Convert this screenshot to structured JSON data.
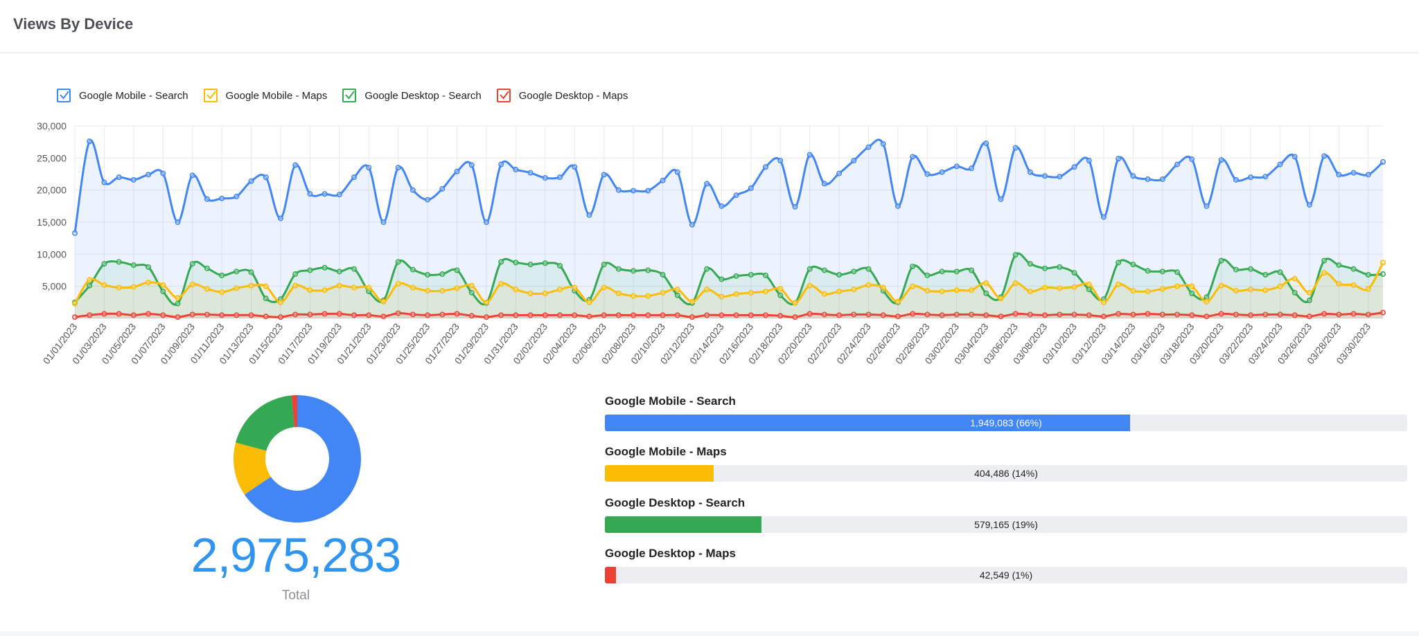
{
  "title": "Views By Device",
  "colors": {
    "mobile_search": "#4285f4",
    "mobile_maps": "#fbbc05",
    "desktop_search": "#34a853",
    "desktop_maps": "#ea4335"
  },
  "legend": [
    {
      "label": "Google Mobile - Search",
      "color": "#4285f4",
      "checked": true,
      "icon": "checkbox-checked-icon"
    },
    {
      "label": "Google Mobile - Maps",
      "color": "#fbbc05",
      "checked": true,
      "icon": "checkbox-checked-icon"
    },
    {
      "label": "Google Desktop - Search",
      "color": "#34a853",
      "checked": true,
      "icon": "checkbox-checked-icon"
    },
    {
      "label": "Google Desktop - Maps",
      "color": "#ea4335",
      "checked": true,
      "icon": "checkbox-checked-icon"
    }
  ],
  "chart_data": [
    {
      "type": "area",
      "x_start": "01/01/2023",
      "x_end": "03/31/2023",
      "x_tick_labels": [
        "01/01/2023",
        "01/03/2023",
        "01/05/2023",
        "01/07/2023",
        "01/09/2023",
        "01/11/2023",
        "01/13/2023",
        "01/15/2023",
        "01/17/2023",
        "01/19/2023",
        "01/21/2023",
        "01/23/2023",
        "01/25/2023",
        "01/27/2023",
        "01/29/2023",
        "01/31/2023",
        "02/02/2023",
        "02/04/2023",
        "02/06/2023",
        "02/08/2023",
        "02/10/2023",
        "02/12/2023",
        "02/14/2023",
        "02/16/2023",
        "02/18/2023",
        "02/20/2023",
        "02/22/2023",
        "02/24/2023",
        "02/26/2023",
        "02/28/2023",
        "03/02/2023",
        "03/04/2023",
        "03/06/2023",
        "03/08/2023",
        "03/10/2023",
        "03/12/2023",
        "03/14/2023",
        "03/16/2023",
        "03/18/2023",
        "03/20/2023",
        "03/22/2023",
        "03/24/2023",
        "03/26/2023",
        "03/28/2023",
        "03/30/2023"
      ],
      "y_ticks": [
        "30,000",
        "25,000",
        "20,000",
        "15,000",
        "10,000",
        "5,000"
      ],
      "ylim": [
        0,
        30000
      ],
      "grid": true,
      "legend_position": "top-left",
      "series": [
        {
          "name": "Google Mobile - Search",
          "color": "#4285f4",
          "values": [
            13300,
            27600,
            21200,
            22000,
            21600,
            22400,
            22600,
            15000,
            22300,
            18600,
            18700,
            19000,
            21400,
            22000,
            15600,
            23900,
            19400,
            19400,
            19300,
            22000,
            23500,
            15000,
            23500,
            20000,
            18500,
            20200,
            22900,
            23900,
            15000,
            24000,
            23200,
            22700,
            21900,
            22000,
            23600,
            16100,
            22400,
            20000,
            19900,
            19900,
            21500,
            22800,
            14600,
            21000,
            17500,
            19200,
            20300,
            23600,
            24600,
            17400,
            25500,
            21000,
            22600,
            24600,
            26700,
            27200,
            17500,
            25200,
            22500,
            22800,
            23700,
            23400,
            27300,
            18600,
            26600,
            22800,
            22200,
            22100,
            23600,
            24600,
            15800,
            24900,
            22200,
            21700,
            21700,
            24000,
            24800,
            17500,
            24700,
            21600,
            22000,
            22100,
            24000,
            25200,
            17700,
            25300,
            22400,
            22700,
            22400,
            24400
          ]
        },
        {
          "name": "Google Mobile - Maps",
          "color": "#fbbc05",
          "values": [
            2300,
            6000,
            5200,
            4800,
            4900,
            5600,
            5200,
            3200,
            5300,
            4600,
            4100,
            4700,
            5100,
            5000,
            2500,
            5100,
            4400,
            4400,
            5100,
            4800,
            4800,
            2600,
            5400,
            4800,
            4300,
            4300,
            4700,
            5100,
            2500,
            5400,
            4500,
            3900,
            3900,
            4500,
            4800,
            2500,
            4800,
            3900,
            3500,
            3500,
            4000,
            4500,
            2600,
            4500,
            3400,
            3800,
            4000,
            4200,
            4600,
            2400,
            5100,
            3800,
            4200,
            4500,
            5200,
            4800,
            2600,
            5000,
            4300,
            4200,
            4400,
            4400,
            5500,
            3100,
            5500,
            4200,
            4800,
            4700,
            4900,
            5300,
            2500,
            5300,
            4300,
            4200,
            4600,
            5000,
            5000,
            2600,
            5100,
            4300,
            4500,
            4400,
            5000,
            6200,
            4000,
            7100,
            5400,
            5200,
            4600,
            8700
          ]
        },
        {
          "name": "Google Desktop - Search",
          "color": "#34a853",
          "values": [
            2500,
            5100,
            8500,
            8800,
            8300,
            8000,
            4200,
            2300,
            8500,
            7800,
            6700,
            7300,
            7200,
            3100,
            3000,
            6900,
            7500,
            7900,
            7300,
            7700,
            4200,
            2800,
            8800,
            7600,
            6800,
            6900,
            7500,
            4000,
            2400,
            8800,
            8700,
            8400,
            8600,
            8200,
            4300,
            2900,
            8400,
            7700,
            7400,
            7500,
            6800,
            3600,
            2400,
            7700,
            6100,
            6600,
            6800,
            6700,
            3600,
            2400,
            7700,
            7500,
            6800,
            7300,
            7700,
            4300,
            2500,
            8100,
            6700,
            7300,
            7300,
            7500,
            3900,
            3300,
            9900,
            8500,
            7800,
            8000,
            7100,
            4500,
            3000,
            8700,
            8400,
            7400,
            7300,
            7200,
            3900,
            3300,
            9000,
            7600,
            7700,
            6800,
            7200,
            4000,
            2800,
            9000,
            8300,
            7700,
            6800,
            6900
          ]
        },
        {
          "name": "Google Desktop - Maps",
          "color": "#ea4335",
          "values": [
            200,
            500,
            700,
            700,
            500,
            700,
            500,
            200,
            600,
            600,
            500,
            500,
            500,
            300,
            200,
            600,
            600,
            700,
            700,
            500,
            500,
            300,
            800,
            600,
            500,
            600,
            700,
            400,
            200,
            500,
            500,
            500,
            500,
            500,
            500,
            300,
            500,
            500,
            500,
            500,
            500,
            500,
            200,
            500,
            500,
            500,
            500,
            500,
            400,
            200,
            700,
            600,
            500,
            600,
            600,
            500,
            300,
            700,
            600,
            500,
            600,
            600,
            500,
            300,
            700,
            600,
            500,
            600,
            600,
            500,
            300,
            700,
            600,
            700,
            600,
            600,
            500,
            300,
            700,
            600,
            500,
            600,
            600,
            500,
            300,
            700,
            600,
            700,
            600,
            900
          ]
        }
      ]
    },
    {
      "type": "pie",
      "labels": [
        "Google Mobile - Search",
        "Google Mobile - Maps",
        "Google Desktop - Search",
        "Google Desktop - Maps"
      ],
      "values": [
        1949083,
        404486,
        579165,
        42549
      ],
      "colors": [
        "#4285f4",
        "#fbbc05",
        "#34a853",
        "#ea4335"
      ]
    }
  ],
  "total": {
    "value": "2,975,283",
    "label": "Total"
  },
  "breakdown": [
    {
      "label": "Google Mobile - Search",
      "text": "1,949,083 (66%)",
      "percent": 65.5,
      "color": "#4285f4",
      "text_light": true
    },
    {
      "label": "Google Mobile - Maps",
      "text": "404,486 (14%)",
      "percent": 13.6,
      "color": "#fbbc05",
      "text_light": false
    },
    {
      "label": "Google Desktop - Search",
      "text": "579,165 (19%)",
      "percent": 19.5,
      "color": "#34a853",
      "text_light": false
    },
    {
      "label": "Google Desktop - Maps",
      "text": "42,549 (1%)",
      "percent": 1.4,
      "color": "#ea4335",
      "text_light": false
    }
  ]
}
